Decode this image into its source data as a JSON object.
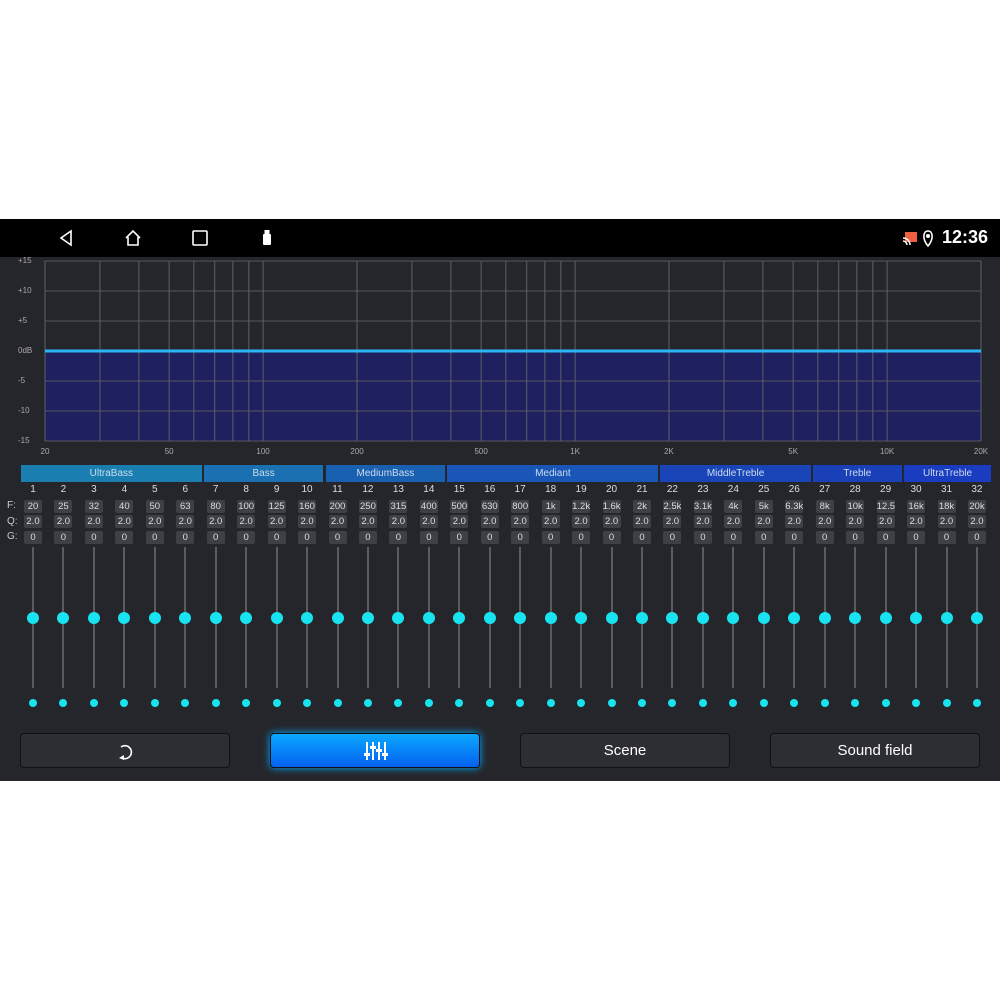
{
  "status": {
    "time": "12:36",
    "icons": [
      "back-icon",
      "home-icon",
      "recents-icon",
      "usb-icon",
      "cast-icon",
      "location-icon"
    ]
  },
  "graph": {
    "y_ticks": [
      "+15",
      "+10",
      "+5",
      "0dB",
      "-5",
      "-10",
      "-15"
    ],
    "x_ticks": [
      "20",
      "50",
      "100",
      "200",
      "500",
      "1K",
      "2K",
      "5K",
      "10K",
      "20K"
    ],
    "curve_gain_db": 0,
    "line_color": "#29b6f6",
    "fill_color": "#1f2060"
  },
  "groups": [
    {
      "label": "UltraBass",
      "from": 1,
      "to": 6,
      "color": "#1a7fb0"
    },
    {
      "label": "Bass",
      "from": 7,
      "to": 10,
      "color": "#1a70b0"
    },
    {
      "label": "MediumBass",
      "from": 11,
      "to": 14,
      "color": "#1a60b0"
    },
    {
      "label": "Mediant",
      "from": 15,
      "to": 21,
      "color": "#1a55b8"
    },
    {
      "label": "MiddleTreble",
      "from": 22,
      "to": 26,
      "color": "#1a45b8"
    },
    {
      "label": "Treble",
      "from": 27,
      "to": 29,
      "color": "#1a40b8"
    },
    {
      "label": "UltraTreble",
      "from": 30,
      "to": 32,
      "color": "#1a3cc0"
    }
  ],
  "row_labels": {
    "f": "F:",
    "q": "Q:",
    "g": "G:"
  },
  "bands": {
    "f": [
      "20",
      "25",
      "32",
      "40",
      "50",
      "63",
      "80",
      "100",
      "125",
      "160",
      "200",
      "250",
      "315",
      "400",
      "500",
      "630",
      "800",
      "1k",
      "1.2k",
      "1.6k",
      "2k",
      "2.5k",
      "3.1k",
      "4k",
      "5k",
      "6.3k",
      "8k",
      "10k",
      "12.5",
      "16k",
      "18k",
      "20k"
    ],
    "q": "2.0",
    "g": "0",
    "gain": 0,
    "count": 32
  },
  "buttons": {
    "reset": "reset-icon",
    "eq": "equalizer-icon",
    "scene": "Scene",
    "sound_field": "Sound field"
  }
}
